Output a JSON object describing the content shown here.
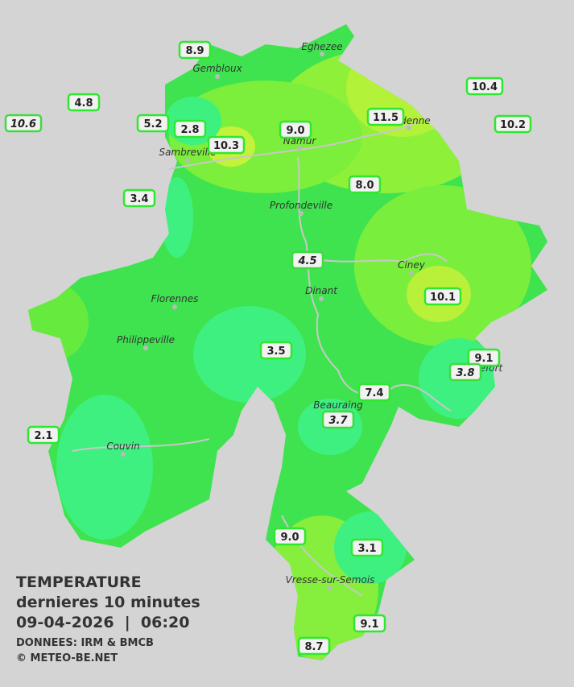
{
  "title": {
    "heading": "TEMPERATURE",
    "subheading": "dernieres 10 minutes",
    "datetime": "09-04-2026  |  06:20",
    "source": "DONNEES: IRM & BMCB",
    "copyright": "© METEO-BE.NET"
  },
  "cities": [
    "Eghezee",
    "Gembloux",
    "Andenne",
    "Namur",
    "Sambreville",
    "Profondeville",
    "Ciney",
    "Dinant",
    "Florennes",
    "Philippeville",
    "Rochefort",
    "Beauraing",
    "Couvin",
    "Vresse-sur-Semois"
  ],
  "stations": [
    {
      "label": "8.9"
    },
    {
      "label": "4.8"
    },
    {
      "label": "10.6",
      "italic": true
    },
    {
      "label": "5.2"
    },
    {
      "label": "2.8"
    },
    {
      "label": "10.3"
    },
    {
      "label": "9.0"
    },
    {
      "label": "11.5"
    },
    {
      "label": "10.4"
    },
    {
      "label": "10.2"
    },
    {
      "label": "3.4"
    },
    {
      "label": "8.0"
    },
    {
      "label": "4.5",
      "italic": true
    },
    {
      "label": "10.1"
    },
    {
      "label": "3.5"
    },
    {
      "label": "9.1"
    },
    {
      "label": "3.8",
      "italic": true
    },
    {
      "label": "7.4"
    },
    {
      "label": "3.7",
      "italic": true
    },
    {
      "label": "2.1"
    },
    {
      "label": "9.0"
    },
    {
      "label": "3.1"
    },
    {
      "label": "9.1"
    },
    {
      "label": "8.7"
    }
  ]
}
